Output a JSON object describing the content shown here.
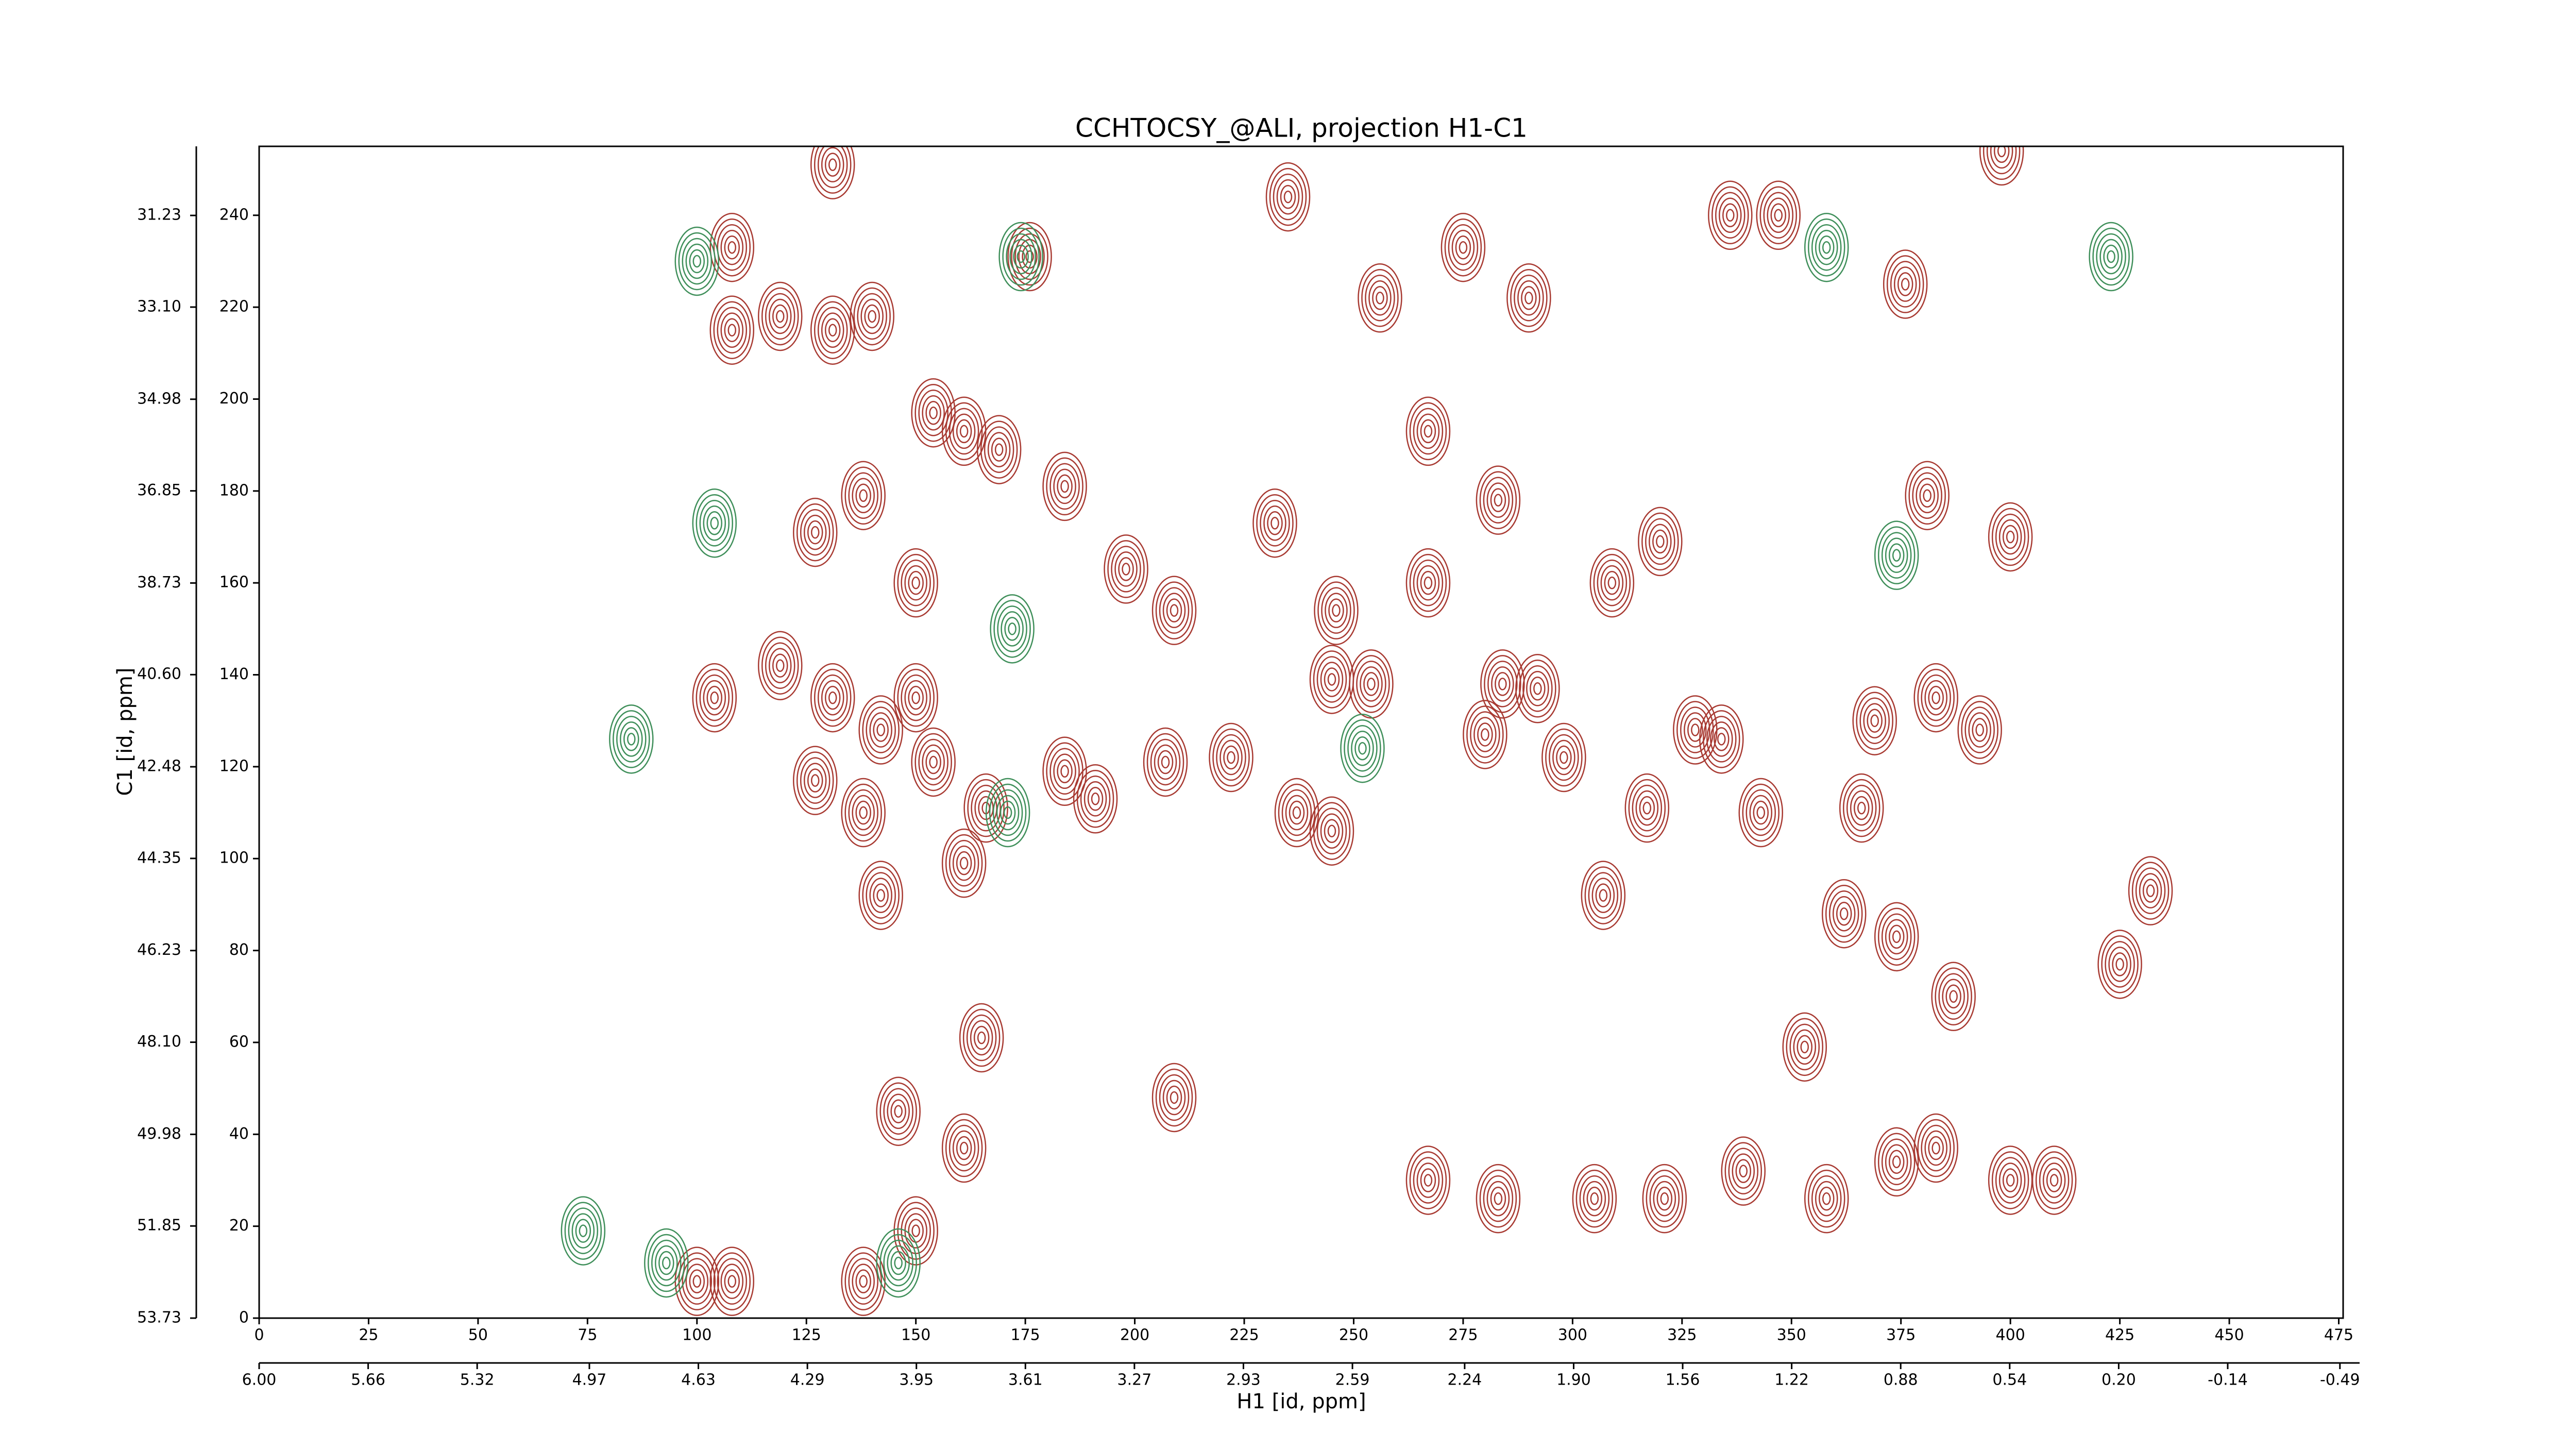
{
  "chart_data": {
    "type": "contour",
    "title": "CCHTOCSY_@ALI, projection H1-C1",
    "x_label": "H1 [id, ppm]",
    "y_label": "C1 [id, ppm]",
    "xlim": [
      0,
      476
    ],
    "ylim": [
      0,
      255
    ],
    "xticks": [
      0,
      25,
      50,
      75,
      100,
      125,
      150,
      175,
      200,
      225,
      250,
      275,
      300,
      325,
      350,
      375,
      400,
      425,
      450,
      475
    ],
    "yticks": [
      0,
      20,
      40,
      60,
      80,
      100,
      120,
      140,
      160,
      180,
      200,
      220,
      240
    ],
    "x2lim": [
      6.0,
      -0.5
    ],
    "x2ticks": [
      {
        "value": 6.0,
        "label": "6.00"
      },
      5.66,
      5.32,
      4.97,
      4.63,
      4.29,
      3.95,
      3.61,
      3.27,
      2.93,
      2.59,
      2.24,
      {
        "value": 1.9,
        "label": "1.90"
      },
      1.56,
      1.22,
      0.88,
      0.54,
      {
        "value": 0.2,
        "label": "0.20"
      },
      -0.14,
      -0.49
    ],
    "y2lim": [
      53.73,
      29.82
    ],
    "y2ticks": [
      53.73,
      51.85,
      49.98,
      {
        "value": 48.1,
        "label": "48.10"
      },
      46.23,
      44.35,
      42.48,
      {
        "value": 40.6,
        "label": "40.60"
      },
      38.73,
      36.85,
      34.98,
      {
        "value": 33.1,
        "label": "33.10"
      },
      31.23
    ],
    "series": [
      {
        "color": "#a83a32",
        "x": [
          184,
          198,
          209,
          232,
          246,
          267,
          254,
          245,
          209,
          165,
          166,
          284,
          292,
          280,
          307,
          320,
          309,
          347,
          336,
          381,
          400,
          383,
          369,
          393,
          366,
          432,
          425,
          374,
          362,
          387,
          400,
          410,
          358,
          353,
          374,
          383,
          328,
          317,
          298,
          343,
          334,
          267,
          283,
          305,
          321,
          339,
          290,
          275,
          256,
          267,
          283,
          235,
          376,
          176,
          184,
          191,
          207,
          222,
          237,
          245,
          142,
          146,
          161,
          150,
          138,
          108,
          100,
          108,
          119,
          131,
          140,
          138,
          127,
          150,
          161,
          169,
          154,
          108,
          119,
          131,
          142,
          104,
          150,
          127,
          138,
          154,
          161,
          131,
          398
        ],
        "y": [
          181,
          163,
          154,
          173,
          154,
          160,
          138,
          139,
          48,
          61,
          111,
          138,
          137,
          127,
          92,
          169,
          160,
          240,
          240,
          179,
          170,
          135,
          130,
          128,
          111,
          93,
          77,
          83,
          88,
          70,
          30,
          30,
          26,
          59,
          34,
          37,
          128,
          111,
          122,
          110,
          126,
          30,
          26,
          26,
          26,
          32,
          222,
          233,
          222,
          193,
          178,
          244,
          225,
          231,
          119,
          113,
          121,
          122,
          110,
          106,
          92,
          45,
          37,
          19,
          8,
          8,
          8,
          215,
          218,
          215,
          218,
          179,
          171,
          160,
          193,
          189,
          197,
          233,
          142,
          135,
          128,
          135,
          135,
          117,
          110,
          121,
          99,
          251,
          254
        ]
      },
      {
        "color": "#3f8f5a",
        "x": [
          100,
          174,
          104,
          74,
          172,
          252,
          358,
          423,
          374,
          171,
          93,
          85,
          146
        ],
        "y": [
          230,
          231,
          173,
          19,
          150,
          124,
          233,
          231,
          166,
          110,
          12,
          126,
          12
        ]
      }
    ]
  }
}
